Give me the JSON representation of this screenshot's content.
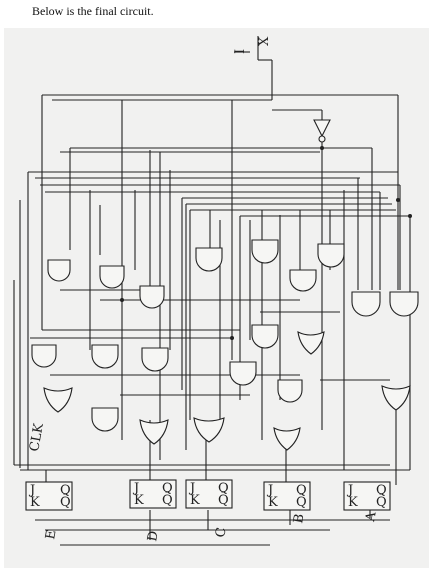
{
  "caption": "Below is the final circuit.",
  "input_labels": [
    "X",
    "I"
  ],
  "clock_label": "CLK",
  "flip_flops": [
    {
      "name": "E",
      "pins": [
        "J",
        "K",
        "Q",
        "Q̄"
      ]
    },
    {
      "name": "D",
      "pins": [
        "J",
        "K",
        "Q",
        "Q̄"
      ]
    },
    {
      "name": "C",
      "pins": [
        "J",
        "K",
        "Q",
        "Q̄"
      ]
    },
    {
      "name": "B",
      "pins": [
        "J",
        "K",
        "Q",
        "Q̄"
      ]
    },
    {
      "name": "A",
      "pins": [
        "J",
        "K",
        "Q",
        "Q̄"
      ]
    }
  ]
}
